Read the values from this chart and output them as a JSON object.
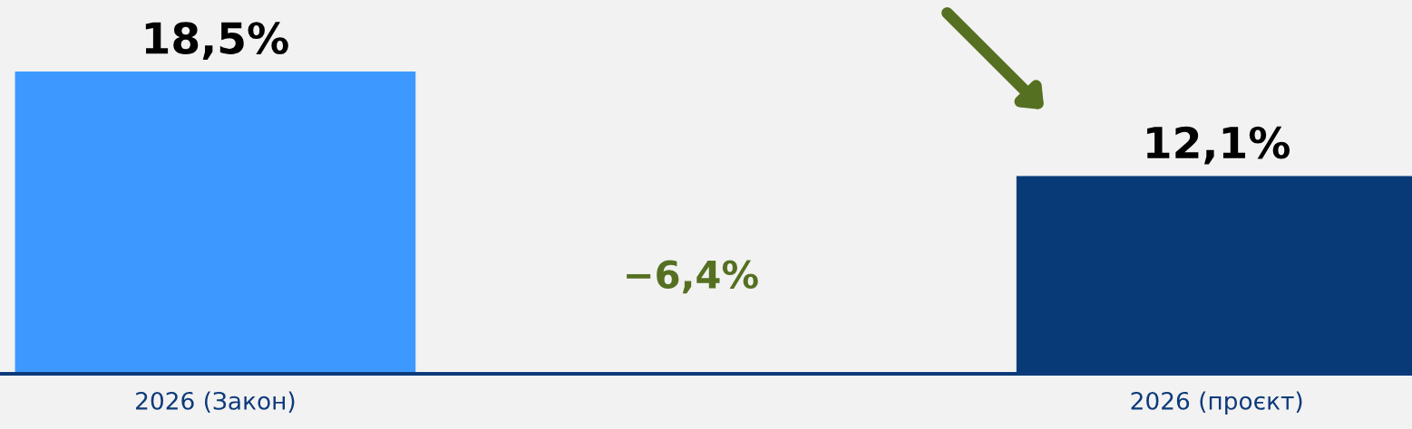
{
  "chart_data": {
    "type": "bar",
    "categories": [
      "2026 (Закон)",
      null,
      "2026 (проєкт)"
    ],
    "values": [
      18.5,
      null,
      12.1
    ],
    "colors": [
      "#3d99ff",
      "#f2f2f2",
      "#083a78"
    ],
    "value_labels": [
      "18,5%",
      null,
      "12,1%"
    ],
    "annotations": [
      "−6,4%"
    ],
    "grid": false,
    "legend": false
  }
}
